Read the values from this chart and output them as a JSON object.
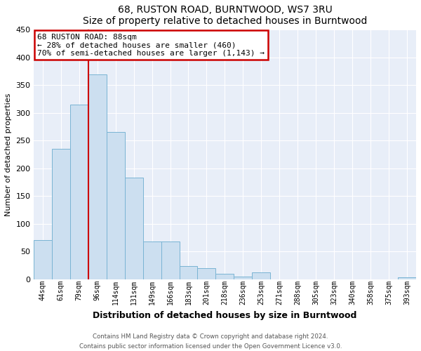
{
  "title": "68, RUSTON ROAD, BURNTWOOD, WS7 3RU",
  "subtitle": "Size of property relative to detached houses in Burntwood",
  "xlabel": "Distribution of detached houses by size in Burntwood",
  "ylabel": "Number of detached properties",
  "bar_labels": [
    "44sqm",
    "61sqm",
    "79sqm",
    "96sqm",
    "114sqm",
    "131sqm",
    "149sqm",
    "166sqm",
    "183sqm",
    "201sqm",
    "218sqm",
    "236sqm",
    "253sqm",
    "271sqm",
    "288sqm",
    "305sqm",
    "323sqm",
    "340sqm",
    "358sqm",
    "375sqm",
    "393sqm"
  ],
  "bar_values": [
    70,
    235,
    315,
    370,
    265,
    183,
    68,
    68,
    23,
    20,
    10,
    5,
    12,
    0,
    0,
    0,
    0,
    0,
    0,
    0,
    3
  ],
  "bar_color": "#ccdff0",
  "bar_edge_color": "#7ab4d4",
  "vline_color": "#cc0000",
  "ylim": [
    0,
    450
  ],
  "yticks": [
    0,
    50,
    100,
    150,
    200,
    250,
    300,
    350,
    400,
    450
  ],
  "annotation_title": "68 RUSTON ROAD: 88sqm",
  "annotation_line1": "← 28% of detached houses are smaller (460)",
  "annotation_line2": "70% of semi-detached houses are larger (1,143) →",
  "footer_line1": "Contains HM Land Registry data © Crown copyright and database right 2024.",
  "footer_line2": "Contains public sector information licensed under the Open Government Licence v3.0.",
  "bg_color": "#e8eef8",
  "grid_color": "#ffffff"
}
